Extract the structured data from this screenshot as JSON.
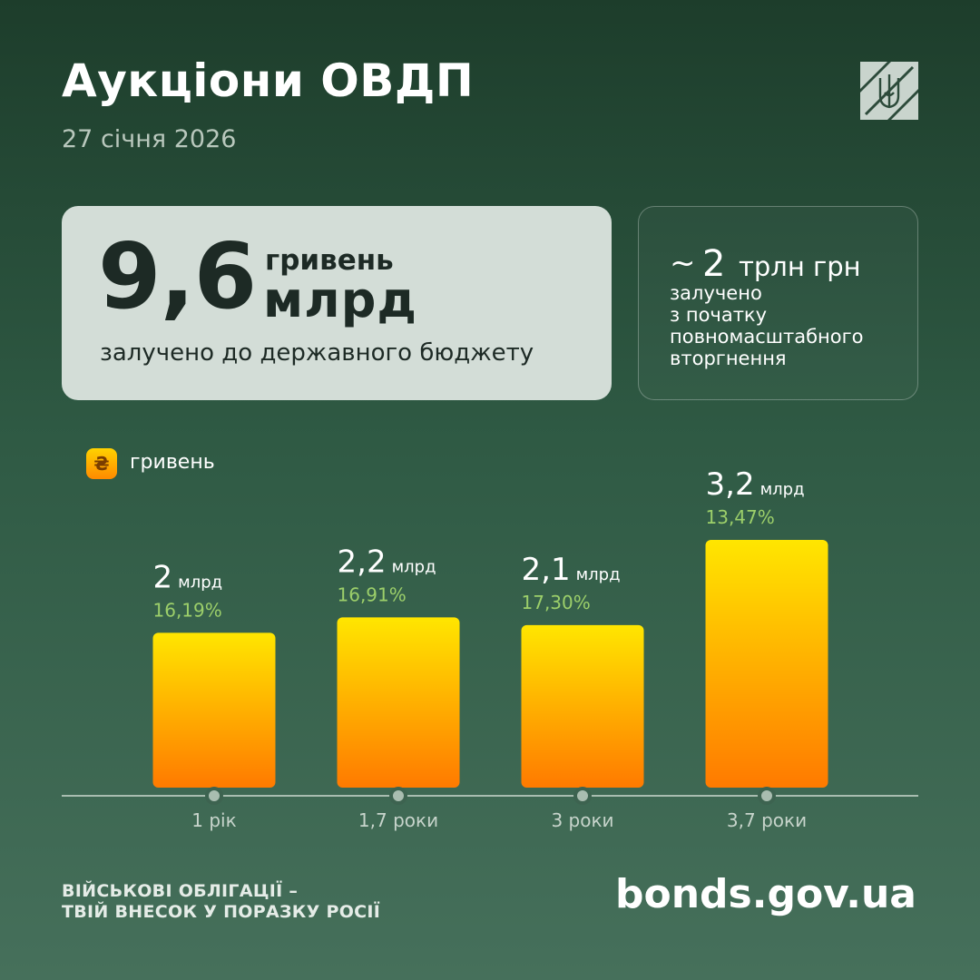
{
  "header": {
    "title": "Аукціони ОВДП",
    "date": "27 січня 2026"
  },
  "summary": {
    "amount": "9,6",
    "unit_top": "гривень",
    "unit_big": "млрд",
    "caption": "залучено до державного бюджету"
  },
  "side_card": {
    "tilde": "~",
    "amount": "2",
    "unit": "трлн грн",
    "lines": [
      "залучено",
      "з початку",
      "повномасштабного",
      "вторгнення"
    ]
  },
  "legend": {
    "icon": "hryvnia-icon",
    "symbol": "₴",
    "label": "гривень"
  },
  "colors": {
    "bg_top": "#1d3d2b",
    "bg_bottom": "#46705b",
    "bar_top": "#ffe600",
    "bar_bottom": "#ff7a00",
    "rate": "#9ccf6a",
    "axis": "#a9bdb0",
    "card": "#d3ddd7"
  },
  "chart_data": {
    "type": "bar",
    "categories": [
      "1 рік",
      "1,7 роки",
      "3 роки",
      "3,7 роки"
    ],
    "series": [
      {
        "name": "гривень",
        "values": [
          2.0,
          2.2,
          2.1,
          3.2
        ],
        "value_labels": [
          "2",
          "2,2",
          "2,1",
          "3,2"
        ],
        "unit_label": "млрд",
        "rates": [
          "16,19%",
          "16,91%",
          "17,30%",
          "13,47%"
        ]
      }
    ],
    "ylim": [
      0,
      3.2
    ],
    "grid": false,
    "legend_position": "top-left"
  },
  "footer": {
    "slogan": [
      "ВІЙСЬКОВІ ОБЛІГАЦІЇ –",
      "ТВІЙ ВНЕСОК У ПОРАЗКУ РОСІЇ"
    ],
    "site": "bonds.gov.ua"
  }
}
